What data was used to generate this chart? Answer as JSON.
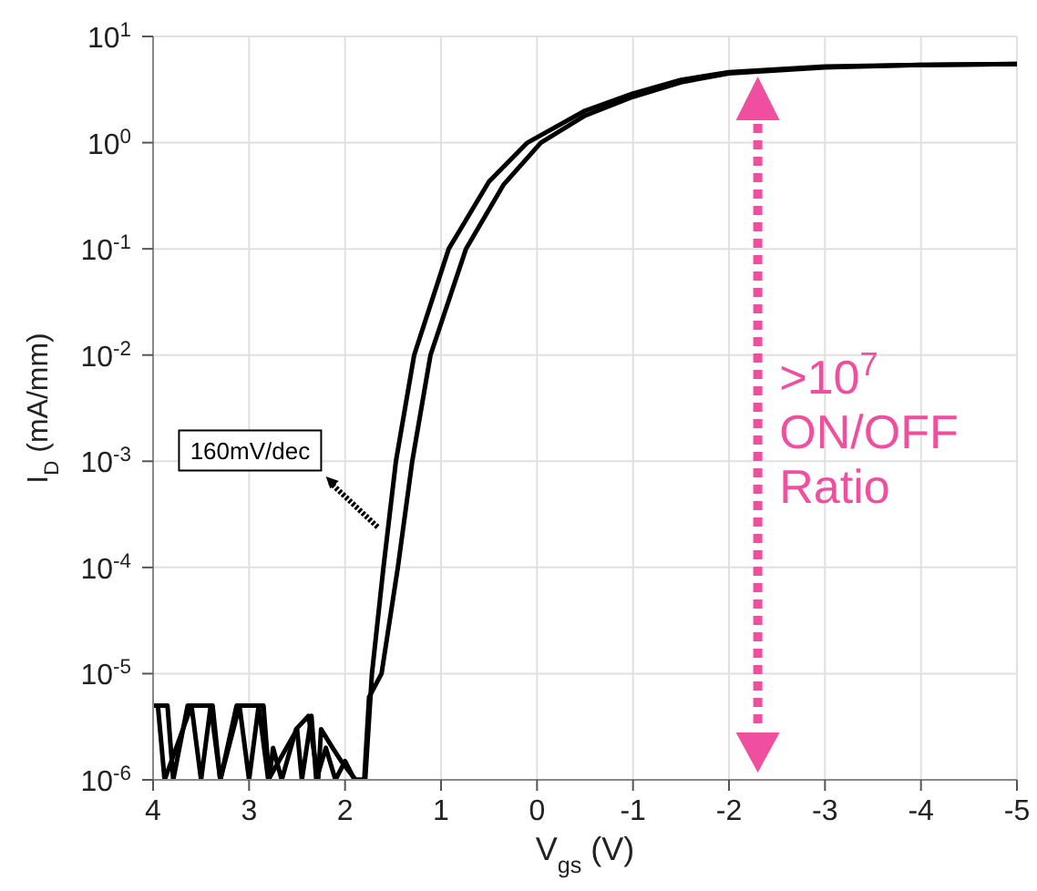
{
  "chart_data": {
    "type": "line",
    "xlabel": "V$_{gs}$ (V)",
    "ylabel": "I$_{D}$ (mA/mm)",
    "log": "y",
    "grid": true,
    "marker": "none",
    "line_style": "solid",
    "xlim": [
      4,
      -5
    ],
    "xticks": [
      4,
      3,
      2,
      1,
      0,
      -1,
      -2,
      -3,
      -4,
      -5
    ],
    "ylim": [
      1e-06,
      10
    ],
    "yticks": [
      {
        "value": 1e-06,
        "label": "10$^{-6}$"
      },
      {
        "value": 1e-05,
        "label": "10$^{-5}$"
      },
      {
        "value": 0.0001,
        "label": "10$^{-4}$"
      },
      {
        "value": 0.001,
        "label": "10$^{-3}$"
      },
      {
        "value": 0.01,
        "label": "10$^{-2}$"
      },
      {
        "value": 0.1,
        "label": "10$^{-1}$"
      },
      {
        "value": 1,
        "label": "10$^{0}$"
      },
      {
        "value": 10,
        "label": "10$^{1}$"
      }
    ],
    "annotations": [
      "160mV/dec",
      ">10$^{7}$ ON/OFF Ratio"
    ],
    "series": [
      {
        "color": "#000000",
        "x": [
          4.0,
          3.85,
          3.79,
          3.64,
          3.47,
          3.38,
          3.3,
          3.13,
          2.94,
          2.85,
          2.79,
          2.75,
          2.66,
          2.51,
          2.38,
          2.28,
          2.25,
          2.13,
          2.04,
          1.89,
          1.79,
          1.72,
          1.6,
          1.47,
          1.28,
          0.92,
          0.5,
          0.1,
          -0.5,
          -1,
          -1.5,
          -2,
          -3,
          -4,
          -5
        ],
        "values": [
          5e-06,
          5e-06,
          1e-06,
          5e-06,
          5e-06,
          5e-06,
          1e-06,
          5e-06,
          5e-06,
          5e-06,
          1e-06,
          2e-06,
          1e-06,
          3e-06,
          4e-06,
          1e-06,
          3e-06,
          2e-06,
          1.5e-06,
          1e-06,
          1e-06,
          1e-05,
          0.0001,
          0.001,
          0.01,
          0.1,
          0.43,
          1,
          2,
          2.9,
          3.9,
          4.6,
          5.2,
          5.4,
          5.5
        ]
      },
      {
        "color": "#000000",
        "x": [
          3.95,
          3.88,
          3.6,
          3.5,
          3.4,
          3.3,
          3.1,
          3.0,
          2.9,
          2.8,
          2.5,
          2.45,
          2.35,
          2.3,
          2.2,
          2.1,
          2.0,
          1.9,
          1.8,
          1.75,
          1.62,
          1.45,
          1.3,
          1.11,
          0.74,
          0.35,
          -0.04,
          -0.5,
          -1,
          -1.5,
          -2,
          -3,
          -4,
          -5
        ],
        "values": [
          5e-06,
          1e-06,
          5e-06,
          1e-06,
          5e-06,
          1e-06,
          5e-06,
          1e-06,
          5e-06,
          1e-06,
          3e-06,
          1e-06,
          4e-06,
          1e-06,
          2e-06,
          1e-06,
          1.5e-06,
          1e-06,
          1e-06,
          6e-06,
          1e-05,
          0.0001,
          0.001,
          0.01,
          0.1,
          0.4,
          1,
          1.8,
          2.7,
          3.7,
          4.5,
          5.1,
          5.4,
          5.5
        ]
      }
    ]
  }
}
